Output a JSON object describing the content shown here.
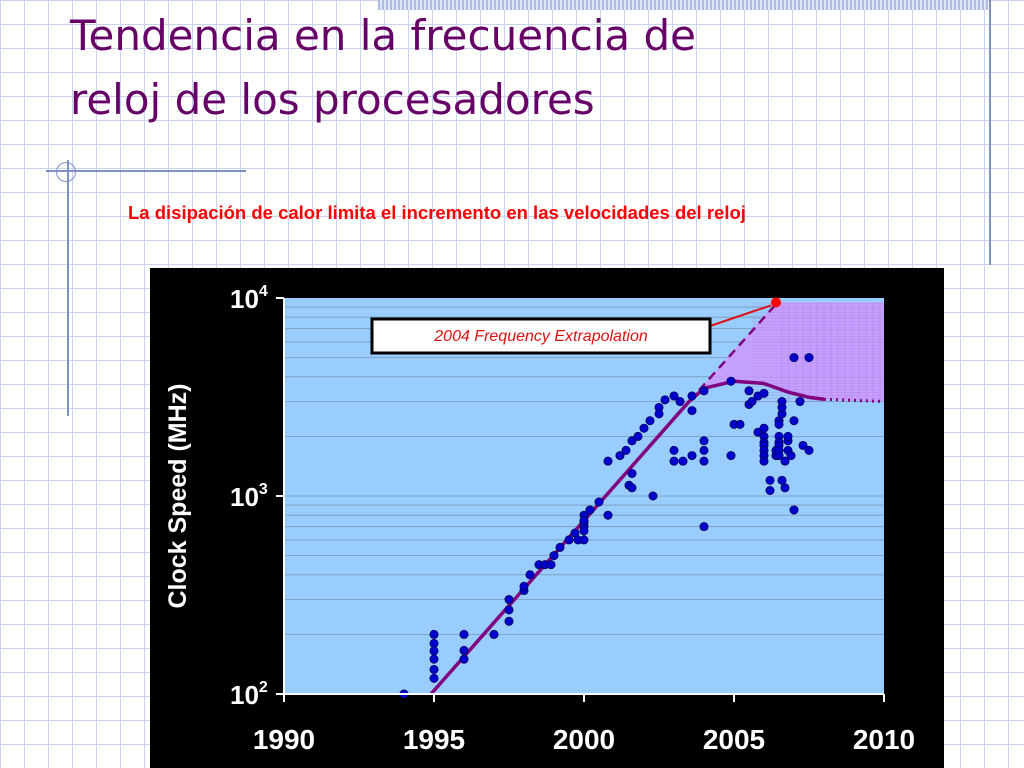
{
  "slide": {
    "title_line1": "Tendencia en la frecuencia de",
    "title_line2": "reloj de los procesadores",
    "subtitle": "La disipación de calor limita el incremento en las velocidades del reloj"
  },
  "colors": {
    "title": "#660066",
    "subtitle": "#ff0000",
    "plot_background": "#99ccff",
    "trend_line": "#800080",
    "points": "#0000cc",
    "extrapolation_fill": "#cc99ff",
    "extrapolation_point": "#ff0000"
  },
  "chart_data": {
    "type": "scatter",
    "ylabel": "Clock Speed (MHz)",
    "xlabel": "",
    "y_scale": "log",
    "xlim": [
      1990,
      2010
    ],
    "ylim": [
      100,
      10000
    ],
    "x_ticks": [
      "1990",
      "1995",
      "2000",
      "2005",
      "2010"
    ],
    "y_ticks": [
      {
        "base": "10",
        "exp": "2"
      },
      {
        "base": "10",
        "exp": "3"
      },
      {
        "base": "10",
        "exp": "4"
      }
    ],
    "annotation": "2004 Frequency Extrapolation",
    "extrapolation_point": [
      2006.4,
      9500
    ],
    "trend_solid": [
      [
        1994.9,
        100
      ],
      [
        2003.5,
        3000
      ],
      [
        2004.0,
        3500
      ],
      [
        2005.0,
        3800
      ],
      [
        2006.0,
        3700
      ],
      [
        2006.8,
        3350
      ],
      [
        2007.5,
        3150
      ],
      [
        2008.0,
        3080
      ]
    ],
    "trend_dotted": [
      [
        2008.0,
        3080
      ],
      [
        2010.0,
        3000
      ]
    ],
    "trend_dashed": [
      [
        2003.5,
        3000
      ],
      [
        2006.4,
        9300
      ]
    ],
    "extrapolation_band": [
      [
        2003.5,
        3000
      ],
      [
        2006.4,
        9500
      ],
      [
        2010.0,
        9500
      ],
      [
        2010.0,
        3000
      ],
      [
        2008.0,
        3080
      ],
      [
        2007.5,
        3150
      ],
      [
        2006.8,
        3350
      ],
      [
        2006.0,
        3700
      ],
      [
        2005.0,
        3800
      ],
      [
        2004.0,
        3500
      ]
    ],
    "series": [
      {
        "values": [
          [
            1994.0,
            100
          ],
          [
            1995.0,
            200
          ],
          [
            1995.0,
            180
          ],
          [
            1995.0,
            165
          ],
          [
            1995.0,
            150
          ],
          [
            1995.0,
            133
          ],
          [
            1995.0,
            120
          ],
          [
            1996.0,
            200
          ],
          [
            1996.0,
            166
          ],
          [
            1996.0,
            150
          ],
          [
            1997.0,
            200
          ],
          [
            1997.5,
            300
          ],
          [
            1997.5,
            266
          ],
          [
            1997.5,
            233
          ],
          [
            1998.0,
            333
          ],
          [
            1998.0,
            350
          ],
          [
            1998.2,
            400
          ],
          [
            1998.5,
            450
          ],
          [
            1998.7,
            450
          ],
          [
            1998.9,
            450
          ],
          [
            1999.0,
            500
          ],
          [
            1999.2,
            550
          ],
          [
            1999.5,
            600
          ],
          [
            1999.7,
            650
          ],
          [
            1999.8,
            600
          ],
          [
            2000.0,
            733
          ],
          [
            2000.0,
            700
          ],
          [
            2000.0,
            800
          ],
          [
            2000.0,
            750
          ],
          [
            2000.0,
            667
          ],
          [
            2000.0,
            600
          ],
          [
            2000.2,
            850
          ],
          [
            2000.5,
            933
          ],
          [
            2000.8,
            800
          ],
          [
            2000.8,
            1500
          ],
          [
            2001.2,
            1600
          ],
          [
            2001.4,
            1700
          ],
          [
            2001.6,
            1900
          ],
          [
            2001.5,
            1133
          ],
          [
            2001.6,
            1100
          ],
          [
            2001.6,
            1300
          ],
          [
            2001.8,
            2000
          ],
          [
            2002.0,
            2200
          ],
          [
            2002.2,
            2400
          ],
          [
            2002.3,
            1000
          ],
          [
            2002.5,
            2800
          ],
          [
            2002.5,
            2600
          ],
          [
            2002.7,
            3060
          ],
          [
            2003.0,
            3200
          ],
          [
            2003.2,
            3000
          ],
          [
            2003.6,
            3200
          ],
          [
            2003.0,
            1700
          ],
          [
            2003.0,
            1500
          ],
          [
            2003.3,
            1500
          ],
          [
            2003.6,
            1600
          ],
          [
            2003.6,
            2700
          ],
          [
            2004.0,
            3400
          ],
          [
            2004.0,
            1900
          ],
          [
            2004.0,
            1700
          ],
          [
            2004.0,
            1500
          ],
          [
            2004.0,
            700
          ],
          [
            2004.9,
            1600
          ],
          [
            2004.9,
            3800
          ],
          [
            2005.0,
            2300
          ],
          [
            2005.2,
            2300
          ],
          [
            2005.5,
            3400
          ],
          [
            2005.5,
            2900
          ],
          [
            2005.6,
            3000
          ],
          [
            2005.8,
            3200
          ],
          [
            2006.0,
            3300
          ],
          [
            2005.8,
            2100
          ],
          [
            2006.0,
            2000
          ],
          [
            2006.0,
            1866
          ],
          [
            2006.0,
            1800
          ],
          [
            2006.0,
            1700
          ],
          [
            2006.0,
            1600
          ],
          [
            2006.0,
            1500
          ],
          [
            2006.0,
            2200
          ],
          [
            2006.2,
            1200
          ],
          [
            2006.2,
            1066
          ],
          [
            2006.4,
            1600
          ],
          [
            2006.4,
            1700
          ],
          [
            2006.5,
            2400
          ],
          [
            2006.5,
            2000
          ],
          [
            2006.5,
            1866
          ],
          [
            2006.5,
            1800
          ],
          [
            2006.5,
            1700
          ],
          [
            2006.5,
            1600
          ],
          [
            2006.5,
            2300
          ],
          [
            2006.6,
            2600
          ],
          [
            2006.6,
            2800
          ],
          [
            2006.6,
            3000
          ],
          [
            2006.6,
            1200
          ],
          [
            2006.7,
            1500
          ],
          [
            2006.7,
            1100
          ],
          [
            2006.8,
            1900
          ],
          [
            2006.8,
            1700
          ],
          [
            2006.8,
            2000
          ],
          [
            2006.9,
            1600
          ],
          [
            2007.0,
            2400
          ],
          [
            2007.0,
            850
          ],
          [
            2007.0,
            5000
          ],
          [
            2007.5,
            5000
          ],
          [
            2007.2,
            3000
          ],
          [
            2007.3,
            1800
          ],
          [
            2007.5,
            1700
          ]
        ]
      }
    ]
  }
}
